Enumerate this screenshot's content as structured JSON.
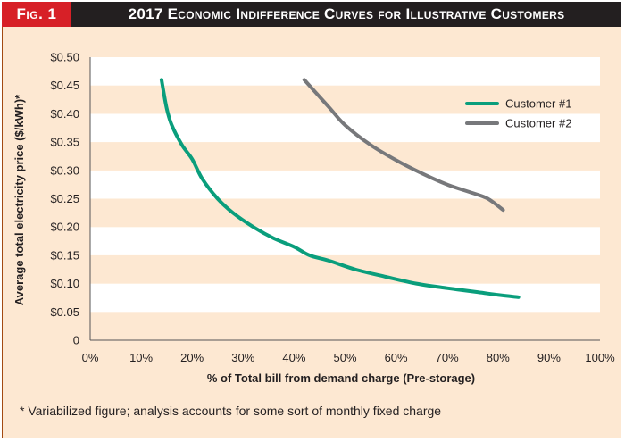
{
  "header": {
    "fig_label": "Fig. 1",
    "title": "2017 Economic Indifference Curves for Illustrative Customers"
  },
  "footnote": "* Variabilized figure; analysis accounts for some sort of monthly fixed charge",
  "colors": {
    "customer1": "#0a9e7c",
    "customer2": "#77787b",
    "band_light": "#ffffff",
    "band_dark": "#fde8d2",
    "accent_red": "#d72027"
  },
  "chart_data": {
    "type": "line",
    "title": "2017 Economic Indifference Curves for Illustrative Customers",
    "xlabel": "% of Total bill from demand charge (Pre-storage)",
    "ylabel": "Average total electricity price ($/kWh)*",
    "xlim": [
      0,
      100
    ],
    "ylim": [
      0,
      0.5
    ],
    "x_ticks": [
      0,
      10,
      20,
      30,
      40,
      50,
      60,
      70,
      80,
      90,
      100
    ],
    "x_tick_labels": [
      "0%",
      "10%",
      "20%",
      "30%",
      "40%",
      "50%",
      "60%",
      "70%",
      "80%",
      "90%",
      "100%"
    ],
    "y_ticks": [
      0,
      0.05,
      0.1,
      0.15,
      0.2,
      0.25,
      0.3,
      0.35,
      0.4,
      0.45,
      0.5
    ],
    "y_tick_labels": [
      "0",
      "$0.05",
      "$0.10",
      "$0.15",
      "$0.20",
      "$0.25",
      "$0.30",
      "$0.35",
      "$0.40",
      "$0.45",
      "$0.50"
    ],
    "legend_position": "top-right",
    "series": [
      {
        "name": "Customer #1",
        "points": [
          [
            14,
            0.46
          ],
          [
            15,
            0.41
          ],
          [
            16,
            0.38
          ],
          [
            18,
            0.345
          ],
          [
            20,
            0.32
          ],
          [
            22,
            0.285
          ],
          [
            25,
            0.25
          ],
          [
            28,
            0.225
          ],
          [
            32,
            0.2
          ],
          [
            36,
            0.18
          ],
          [
            40,
            0.165
          ],
          [
            43,
            0.15
          ],
          [
            47,
            0.14
          ],
          [
            52,
            0.125
          ],
          [
            58,
            0.112
          ],
          [
            64,
            0.1
          ],
          [
            70,
            0.092
          ],
          [
            76,
            0.085
          ],
          [
            80,
            0.08
          ],
          [
            84,
            0.076
          ]
        ]
      },
      {
        "name": "Customer #2",
        "points": [
          [
            42,
            0.46
          ],
          [
            44,
            0.44
          ],
          [
            47,
            0.41
          ],
          [
            50,
            0.38
          ],
          [
            55,
            0.345
          ],
          [
            60,
            0.318
          ],
          [
            65,
            0.295
          ],
          [
            70,
            0.275
          ],
          [
            75,
            0.26
          ],
          [
            78,
            0.25
          ],
          [
            81,
            0.23
          ]
        ]
      }
    ]
  }
}
